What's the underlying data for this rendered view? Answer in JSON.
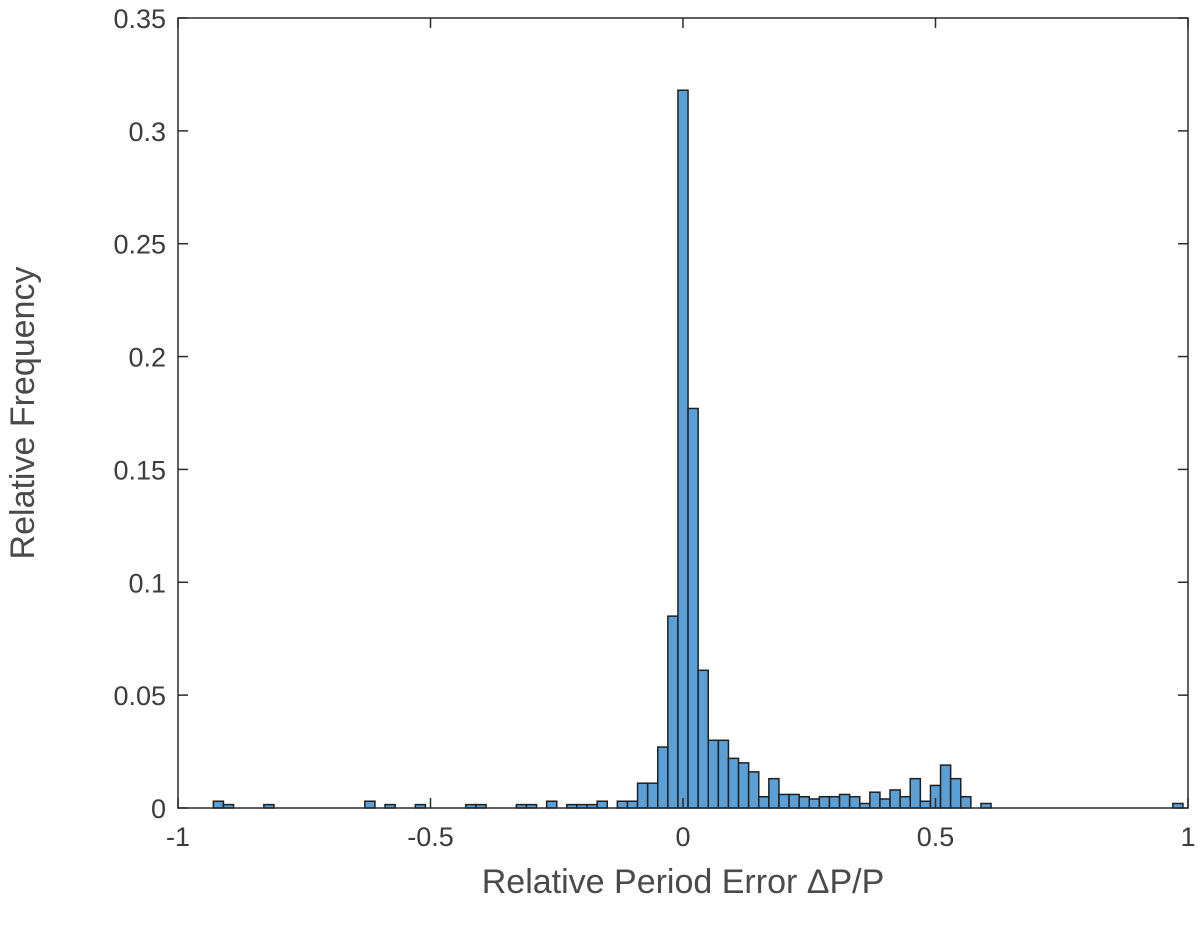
{
  "chart_data": {
    "type": "bar",
    "title": "",
    "xlabel": "Relative Period Error ΔP/P",
    "ylabel": "Relative Frequency",
    "xlim": [
      -1,
      1
    ],
    "ylim": [
      0,
      0.35
    ],
    "xticks": [
      "-1",
      "-0.5",
      "0",
      "0.5",
      "1"
    ],
    "yticks": [
      "0",
      "0.05",
      "0.1",
      "0.15",
      "0.2",
      "0.25",
      "0.3",
      "0.35"
    ],
    "grid": false,
    "bin_width": 0.02,
    "bar_color": "#5aa0d6",
    "edge_color": "#1f1f1f",
    "bins": [
      {
        "x": -0.92,
        "value": 0.003
      },
      {
        "x": -0.9,
        "value": 0.0015
      },
      {
        "x": -0.82,
        "value": 0.0015
      },
      {
        "x": -0.62,
        "value": 0.003
      },
      {
        "x": -0.58,
        "value": 0.0015
      },
      {
        "x": -0.52,
        "value": 0.0015
      },
      {
        "x": -0.42,
        "value": 0.0015
      },
      {
        "x": -0.4,
        "value": 0.0015
      },
      {
        "x": -0.32,
        "value": 0.0015
      },
      {
        "x": -0.3,
        "value": 0.0015
      },
      {
        "x": -0.26,
        "value": 0.003
      },
      {
        "x": -0.22,
        "value": 0.0015
      },
      {
        "x": -0.2,
        "value": 0.0015
      },
      {
        "x": -0.18,
        "value": 0.0015
      },
      {
        "x": -0.16,
        "value": 0.003
      },
      {
        "x": -0.12,
        "value": 0.003
      },
      {
        "x": -0.1,
        "value": 0.003
      },
      {
        "x": -0.08,
        "value": 0.011
      },
      {
        "x": -0.06,
        "value": 0.011
      },
      {
        "x": -0.04,
        "value": 0.027
      },
      {
        "x": -0.02,
        "value": 0.085
      },
      {
        "x": 0.0,
        "value": 0.318
      },
      {
        "x": 0.02,
        "value": 0.177
      },
      {
        "x": 0.04,
        "value": 0.061
      },
      {
        "x": 0.06,
        "value": 0.03
      },
      {
        "x": 0.08,
        "value": 0.03
      },
      {
        "x": 0.1,
        "value": 0.022
      },
      {
        "x": 0.12,
        "value": 0.02
      },
      {
        "x": 0.14,
        "value": 0.016
      },
      {
        "x": 0.16,
        "value": 0.005
      },
      {
        "x": 0.18,
        "value": 0.013
      },
      {
        "x": 0.2,
        "value": 0.006
      },
      {
        "x": 0.22,
        "value": 0.006
      },
      {
        "x": 0.24,
        "value": 0.005
      },
      {
        "x": 0.26,
        "value": 0.004
      },
      {
        "x": 0.28,
        "value": 0.005
      },
      {
        "x": 0.3,
        "value": 0.005
      },
      {
        "x": 0.32,
        "value": 0.006
      },
      {
        "x": 0.34,
        "value": 0.005
      },
      {
        "x": 0.36,
        "value": 0.002
      },
      {
        "x": 0.38,
        "value": 0.007
      },
      {
        "x": 0.4,
        "value": 0.004
      },
      {
        "x": 0.42,
        "value": 0.008
      },
      {
        "x": 0.44,
        "value": 0.005
      },
      {
        "x": 0.46,
        "value": 0.013
      },
      {
        "x": 0.48,
        "value": 0.003
      },
      {
        "x": 0.5,
        "value": 0.01
      },
      {
        "x": 0.52,
        "value": 0.019
      },
      {
        "x": 0.54,
        "value": 0.013
      },
      {
        "x": 0.56,
        "value": 0.005
      },
      {
        "x": 0.6,
        "value": 0.002
      },
      {
        "x": 0.98,
        "value": 0.002
      }
    ]
  }
}
